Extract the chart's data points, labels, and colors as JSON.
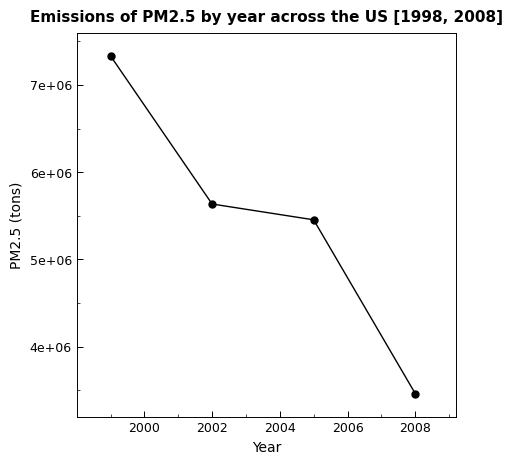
{
  "years": [
    1999,
    2002,
    2005,
    2008
  ],
  "emissions": [
    7332967,
    5635780,
    5454703,
    3464206
  ],
  "title": "Emissions of PM2.5 by year across the US [1998, 2008]",
  "xlabel": "Year",
  "ylabel": "PM2.5 (tons)",
  "xlim": [
    1998.0,
    2009.2
  ],
  "ylim": [
    3200000,
    7600000
  ],
  "yticks": [
    4000000,
    5000000,
    6000000,
    7000000
  ],
  "xticks": [
    2000,
    2002,
    2004,
    2006,
    2008
  ],
  "line_color": "black",
  "marker": "o",
  "marker_color": "black",
  "marker_size": 5,
  "bg_color": "#ffffff",
  "title_fontsize": 11,
  "label_fontsize": 10
}
